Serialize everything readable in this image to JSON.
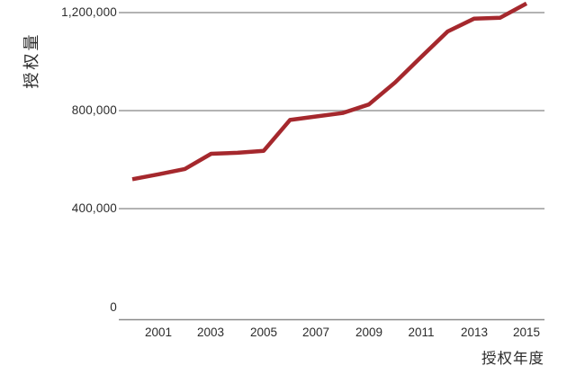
{
  "chart_data": {
    "type": "line",
    "title": "",
    "ylabel": "授权量",
    "xlabel": "授权年度",
    "series_name": "授权量",
    "x": [
      2000,
      2001,
      2002,
      2003,
      2004,
      2005,
      2006,
      2007,
      2008,
      2009,
      2010,
      2011,
      2012,
      2013,
      2014,
      2015
    ],
    "values": [
      520000,
      540000,
      562000,
      624000,
      628000,
      636000,
      762000,
      776000,
      790000,
      825000,
      915000,
      1020000,
      1123000,
      1175000,
      1179000,
      1237000
    ],
    "x_tick_labels": [
      "2001",
      "2003",
      "2005",
      "2007",
      "2009",
      "2011",
      "2013",
      "2015"
    ],
    "y_tick_labels": [
      "0",
      "400,000",
      "800,000",
      "1,200,000"
    ],
    "y_ticks": [
      0,
      400000,
      800000,
      1200000
    ],
    "xlim": [
      2000,
      2015
    ],
    "ylim": [
      0,
      1250000
    ],
    "grid": "horizontal-only",
    "legend": "none",
    "line_color": "#A5282D",
    "grid_color": "#9a9a9a",
    "axis_color": "#8a8a8a"
  }
}
